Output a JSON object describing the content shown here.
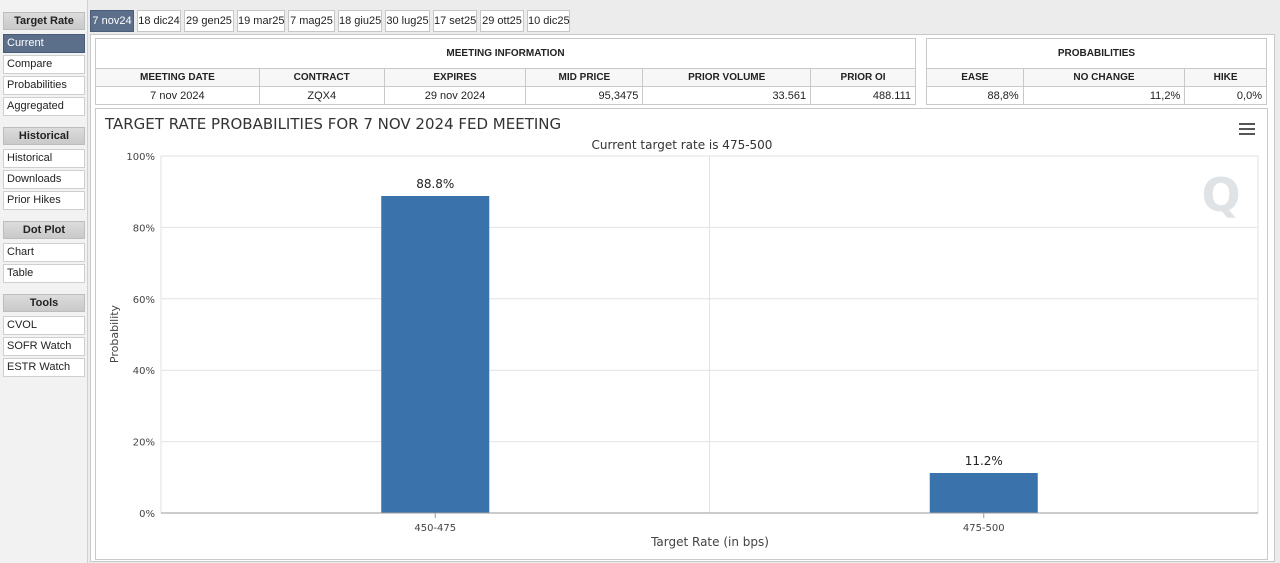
{
  "sidebar": {
    "sections": [
      {
        "title": "Target Rate",
        "items": [
          "Current",
          "Compare",
          "Probabilities",
          "Aggregated"
        ]
      },
      {
        "title": "Historical",
        "items": [
          "Historical",
          "Downloads",
          "Prior Hikes"
        ]
      },
      {
        "title": "Dot Plot",
        "items": [
          "Chart",
          "Table"
        ]
      },
      {
        "title": "Tools",
        "items": [
          "CVOL",
          "SOFR Watch",
          "ESTR Watch"
        ]
      }
    ],
    "active_item": "Current"
  },
  "tabs": [
    "7 nov24",
    "18 dic24",
    "29 gen25",
    "19 mar25",
    "7 mag25",
    "18 giu25",
    "30 lug25",
    "17 set25",
    "29 ott25",
    "10 dic25"
  ],
  "active_tab": "7 nov24",
  "meeting_info": {
    "title": "MEETING INFORMATION",
    "headers": [
      "MEETING DATE",
      "CONTRACT",
      "EXPIRES",
      "MID PRICE",
      "PRIOR VOLUME",
      "PRIOR OI"
    ],
    "values": [
      "7 nov 2024",
      "ZQX4",
      "29 nov 2024",
      "95,3475",
      "33.561",
      "488.111"
    ]
  },
  "probabilities": {
    "title": "PROBABILITIES",
    "headers": [
      "EASE",
      "NO CHANGE",
      "HIKE"
    ],
    "values": [
      "88,8%",
      "11,2%",
      "0,0%"
    ]
  },
  "chart_data": {
    "type": "bar",
    "title": "TARGET RATE PROBABILITIES FOR 7 NOV 2024 FED MEETING",
    "subtitle": "Current target rate is 475-500",
    "xlabel": "Target Rate (in bps)",
    "ylabel": "Probability",
    "categories": [
      "450-475",
      "475-500"
    ],
    "values": [
      88.8,
      11.2
    ],
    "data_labels": [
      "88.8%",
      "11.2%"
    ],
    "ylim": [
      0,
      100
    ],
    "yticks": [
      "0%",
      "20%",
      "40%",
      "60%",
      "80%",
      "100%"
    ],
    "grid": true,
    "bar_color": "#3a72ac"
  }
}
